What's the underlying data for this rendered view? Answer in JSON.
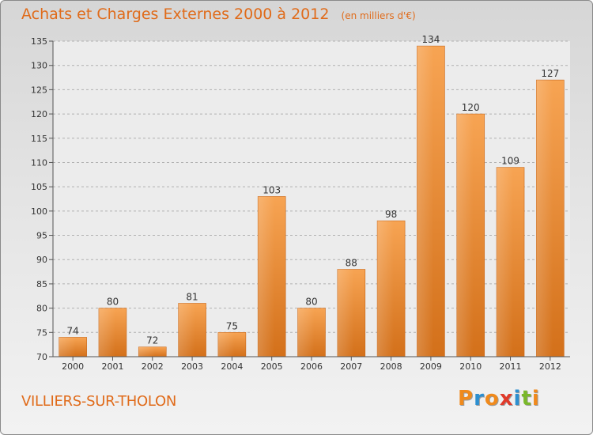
{
  "chart_data": {
    "type": "bar",
    "title": "Achats et Charges Externes 2000 à 2012",
    "subtitle": "(en milliers d'€)",
    "categories": [
      "2000",
      "2001",
      "2002",
      "2003",
      "2004",
      "2005",
      "2006",
      "2007",
      "2008",
      "2009",
      "2010",
      "2011",
      "2012"
    ],
    "values": [
      74,
      80,
      72,
      81,
      75,
      103,
      80,
      88,
      98,
      134,
      120,
      109,
      127
    ],
    "ylim": [
      70,
      135
    ],
    "yticks": [
      70,
      75,
      80,
      85,
      90,
      95,
      100,
      105,
      110,
      115,
      120,
      125,
      130,
      135
    ],
    "grid": true,
    "bar_color": "#f0953c",
    "bar_color_dark": "#d4751c",
    "title_color": "#e06b1a"
  },
  "footer": {
    "commune": "VILLIERS-SUR-THOLON"
  },
  "brand": {
    "name": "Proxiti",
    "letters": [
      "P",
      "r",
      "o",
      "x",
      "i",
      "t",
      "i"
    ],
    "letter_colors": [
      "#f08a1c",
      "#2c8fd0",
      "#f08a1c",
      "#e03a2a",
      "#2c8fd0",
      "#7ab82a",
      "#f08a1c"
    ]
  }
}
